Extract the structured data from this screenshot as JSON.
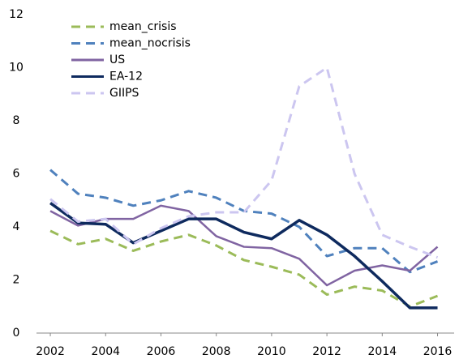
{
  "chart_data": {
    "type": "line",
    "x": [
      2002,
      2003,
      2004,
      2005,
      2006,
      2007,
      2008,
      2009,
      2010,
      2011,
      2012,
      2013,
      2014,
      2015,
      2016
    ],
    "series": [
      {
        "name": "mean_crisis",
        "color": "#9bbb59",
        "dashed": true,
        "values": [
          3.85,
          3.35,
          3.55,
          3.1,
          3.45,
          3.7,
          3.3,
          2.75,
          2.5,
          2.2,
          1.45,
          1.75,
          1.6,
          1.0,
          1.4
        ]
      },
      {
        "name": "mean_nocrisis",
        "color": "#4f81bd",
        "dashed": true,
        "values": [
          6.15,
          5.25,
          5.1,
          4.8,
          5.0,
          5.35,
          5.1,
          4.6,
          4.5,
          4.0,
          2.9,
          3.2,
          3.2,
          2.3,
          2.7
        ]
      },
      {
        "name": "US",
        "color": "#8064a2",
        "dashed": false,
        "values": [
          4.6,
          4.05,
          4.3,
          4.3,
          4.8,
          4.6,
          3.65,
          3.25,
          3.2,
          2.8,
          1.8,
          2.35,
          2.55,
          2.35,
          3.25
        ]
      },
      {
        "name": "EA-12",
        "color": "#0e2a5e",
        "dashed": false,
        "values": [
          4.9,
          4.15,
          4.1,
          3.4,
          3.85,
          4.3,
          4.3,
          3.8,
          3.55,
          4.25,
          3.7,
          2.9,
          1.95,
          0.95,
          0.95
        ]
      },
      {
        "name": "GIIPS",
        "color": "#ccc6f0",
        "dashed": true,
        "values": [
          5.05,
          4.2,
          4.3,
          3.35,
          3.95,
          4.4,
          4.55,
          4.55,
          5.75,
          9.3,
          10.0,
          6.0,
          3.7,
          3.25,
          2.85
        ]
      }
    ],
    "xlim": [
      2001.5,
      2016.6
    ],
    "xticks": [
      2002,
      2004,
      2006,
      2008,
      2010,
      2012,
      2014,
      2016
    ],
    "ylim": [
      0,
      12
    ],
    "yticks": [
      0,
      2,
      4,
      6,
      8,
      10,
      12
    ],
    "legend": "top-left",
    "grid": false
  }
}
